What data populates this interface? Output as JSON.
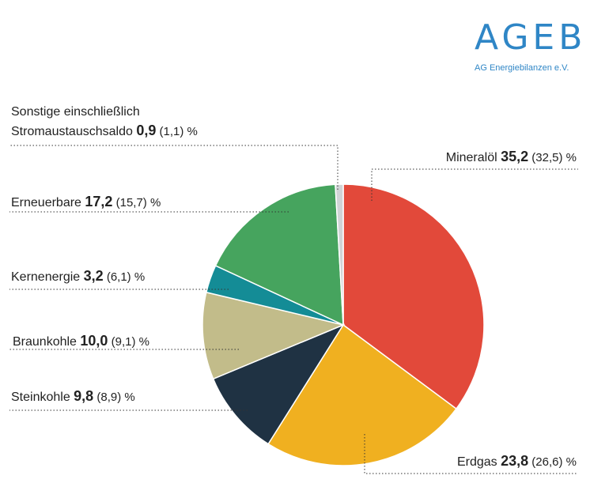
{
  "logo": {
    "main": "AGEB",
    "sub": "AG Energiebilanzen e.V."
  },
  "colors": {
    "logo": "#2f86c6",
    "mineraloel": "#e2493a",
    "erdgas": "#f0b020",
    "steinkohle": "#1f3243",
    "braunkohle": "#c2bc8a",
    "kernenergie": "#148c96",
    "erneuerbare": "#46a45e",
    "sonstige": "#d0d4d6"
  },
  "chart_data": {
    "type": "pie",
    "unit": "%",
    "slices": [
      {
        "key": "mineraloel",
        "label": "Mineralöl",
        "value": 35.2,
        "value_text": "35,2",
        "previous": 32.5,
        "previous_text": "(32,5)",
        "color": "#e2493a"
      },
      {
        "key": "erdgas",
        "label": "Erdgas",
        "value": 23.8,
        "value_text": "23,8",
        "previous": 26.6,
        "previous_text": "(26,6)",
        "color": "#f0b020"
      },
      {
        "key": "steinkohle",
        "label": "Steinkohle",
        "value": 9.8,
        "value_text": "9,8",
        "previous": 8.9,
        "previous_text": "(8,9)",
        "color": "#1f3243"
      },
      {
        "key": "braunkohle",
        "label": "Braunkohle",
        "value": 10.0,
        "value_text": "10,0",
        "previous": 9.1,
        "previous_text": "(9,1)",
        "color": "#c2bc8a"
      },
      {
        "key": "kernenergie",
        "label": "Kernenergie",
        "value": 3.2,
        "value_text": "3,2",
        "previous": 6.1,
        "previous_text": "(6,1)",
        "color": "#148c96"
      },
      {
        "key": "erneuerbare",
        "label": "Erneuerbare",
        "value": 17.2,
        "value_text": "17,2",
        "previous": 15.7,
        "previous_text": "(15,7)",
        "color": "#46a45e"
      },
      {
        "key": "sonstige",
        "label": "Sonstige einschließlich Stromaustauschsaldo",
        "label_lines": [
          "Sonstige einschließlich",
          "Stromaustauschsaldo"
        ],
        "value": 0.9,
        "value_text": "0,9",
        "previous": 1.1,
        "previous_text": "(1,1)",
        "color": "#d0d4d6"
      }
    ]
  }
}
